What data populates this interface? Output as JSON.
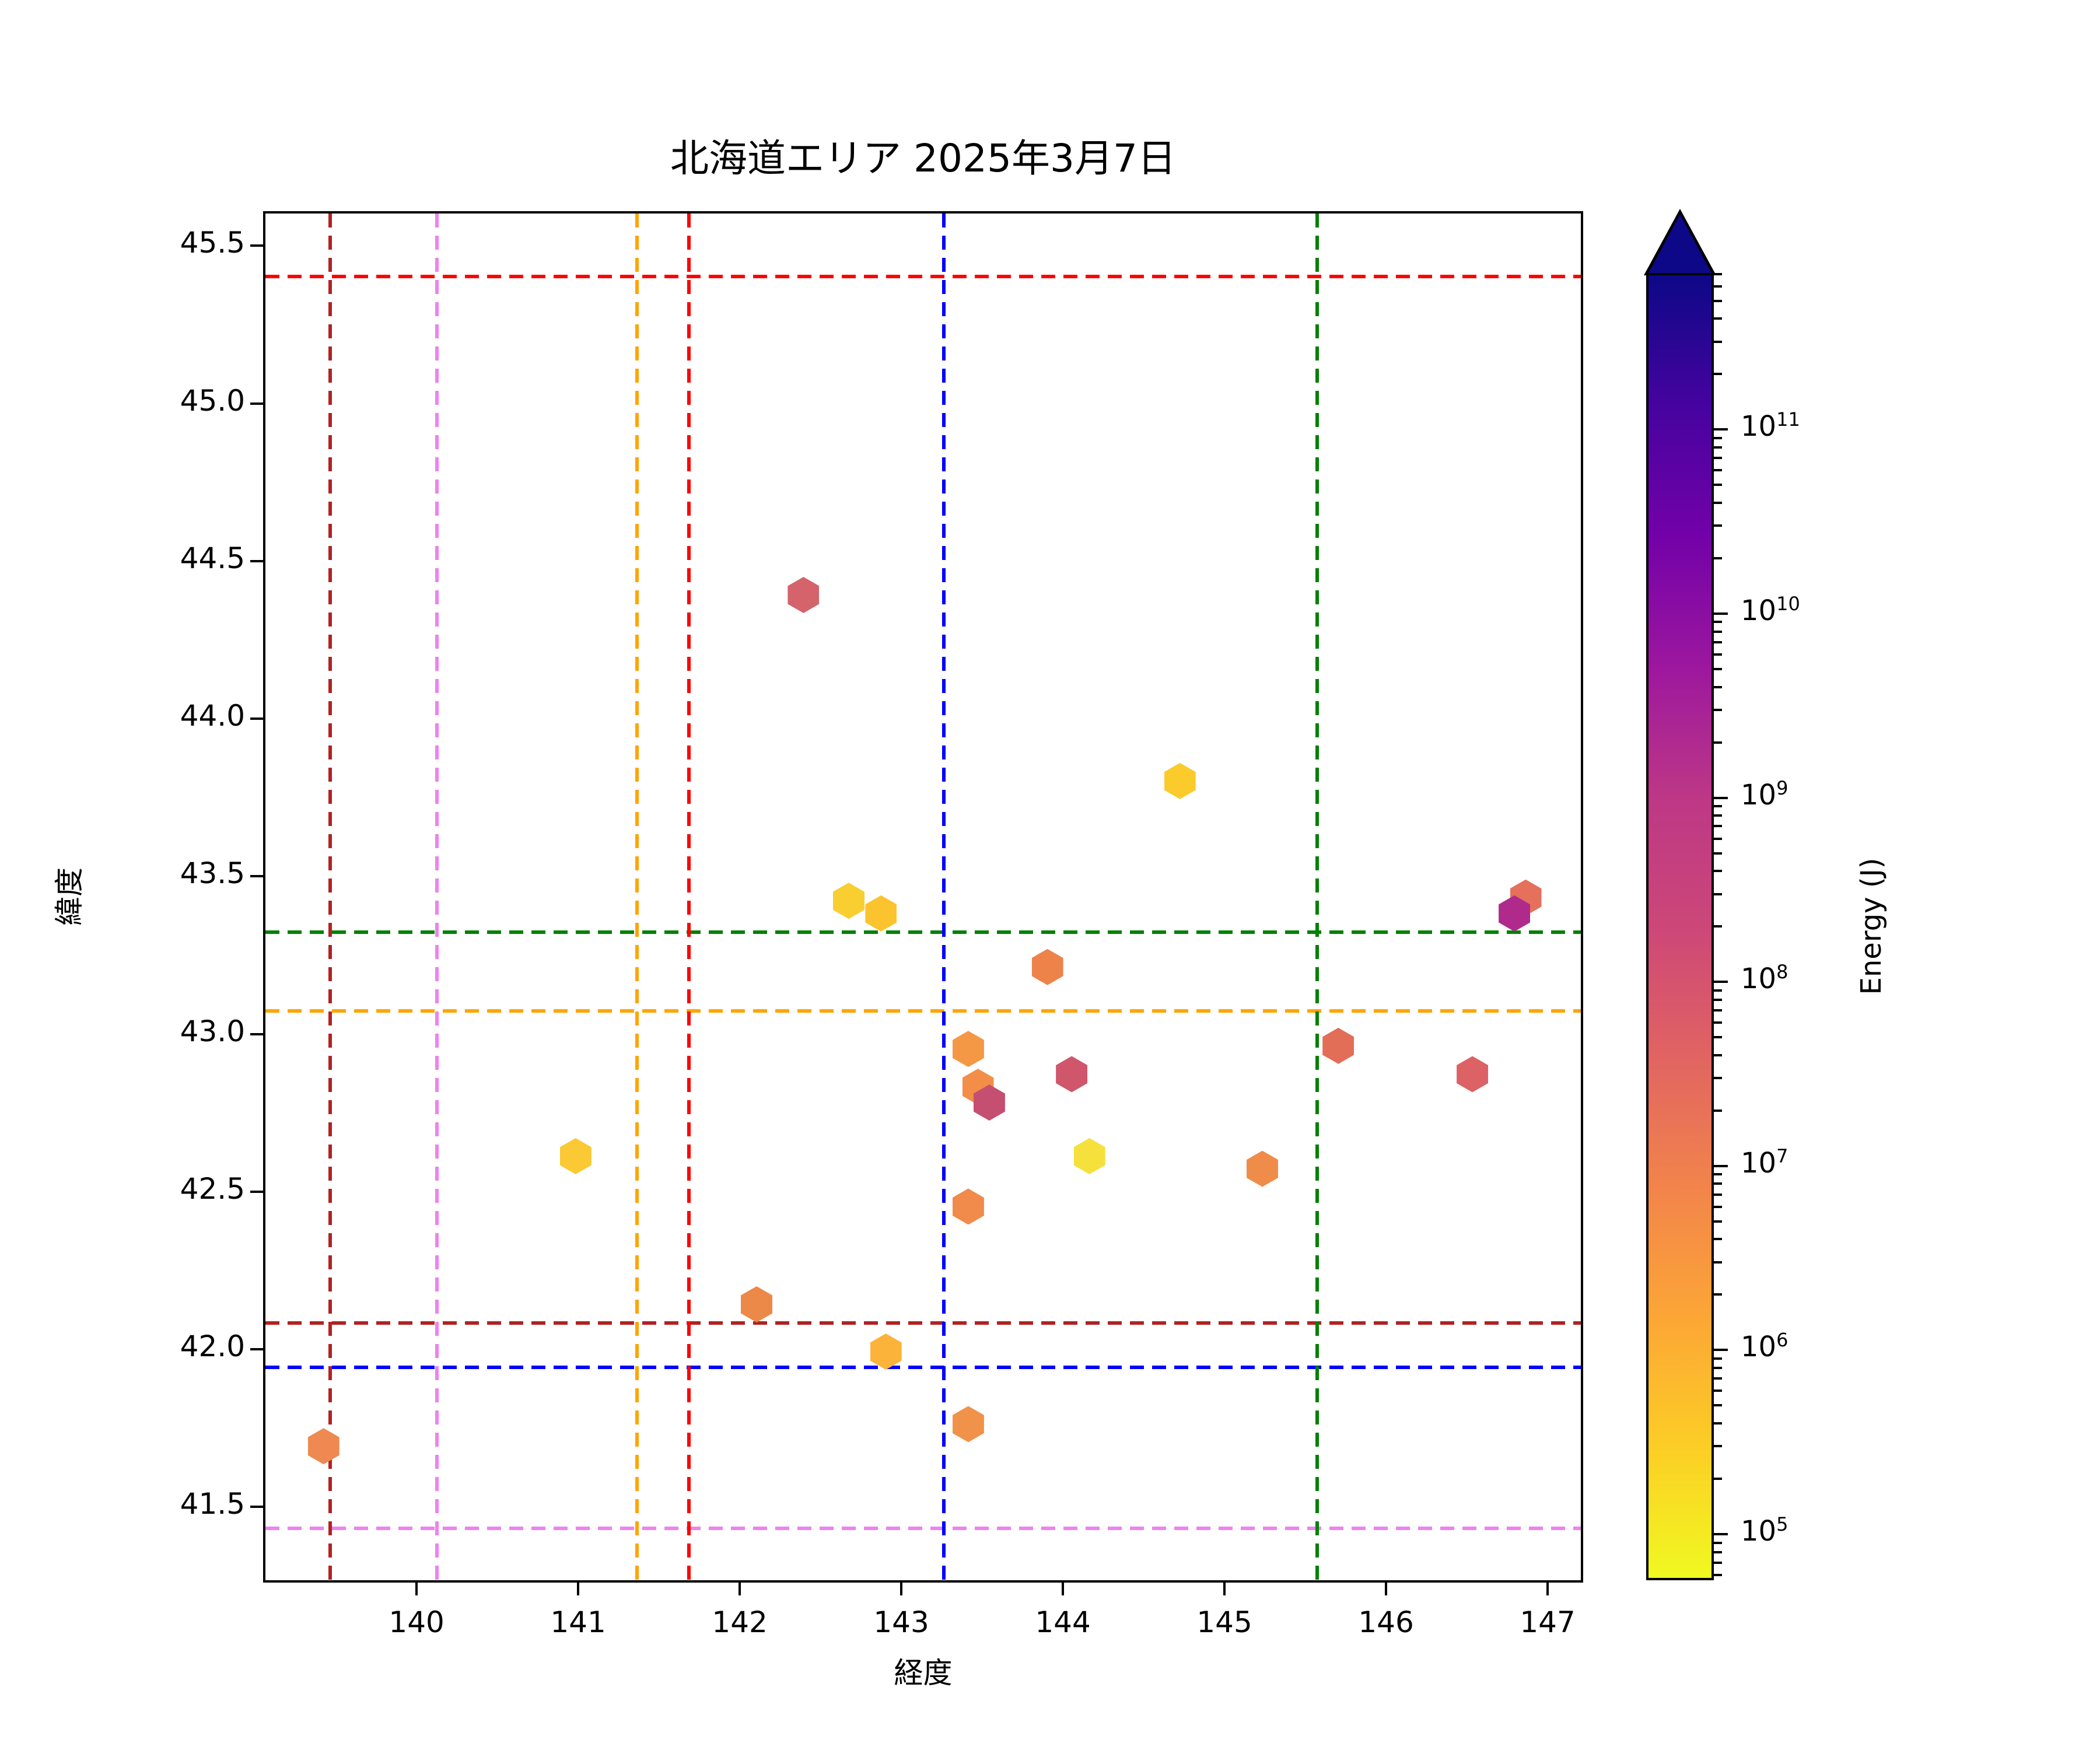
{
  "title": "北海道エリア 2025年3月7日",
  "chart_data": {
    "type": "scatter",
    "title": "北海道エリア 2025年3月7日",
    "xlabel": "経度",
    "ylabel": "緯度",
    "xlim": [
      139.05,
      147.22
    ],
    "ylim": [
      41.26,
      45.61
    ],
    "xticks": [
      140,
      141,
      142,
      143,
      144,
      145,
      146,
      147
    ],
    "yticks": [
      41.5,
      42.0,
      42.5,
      43.0,
      43.5,
      44.0,
      44.5,
      45.0,
      45.5
    ],
    "grid": false,
    "marker": "hexagon",
    "points": [
      {
        "lon": 139.41,
        "lat": 41.7,
        "color": "#ee8a51",
        "energy_j": 6500000
      },
      {
        "lon": 140.97,
        "lat": 42.62,
        "color": "#fbc933",
        "energy_j": 470000
      },
      {
        "lon": 142.09,
        "lat": 42.15,
        "color": "#ec8948",
        "energy_j": 6300000
      },
      {
        "lon": 142.38,
        "lat": 44.4,
        "color": "#d5636c",
        "energy_j": 59000000
      },
      {
        "lon": 142.66,
        "lat": 43.43,
        "color": "#f9ce30",
        "energy_j": 400000
      },
      {
        "lon": 142.86,
        "lat": 43.39,
        "color": "#fbc32e",
        "energy_j": 630000
      },
      {
        "lon": 142.89,
        "lat": 42.0,
        "color": "#fbb33a",
        "energy_j": 1500000
      },
      {
        "lon": 143.4,
        "lat": 42.96,
        "color": "#f49845",
        "energy_j": 4000000
      },
      {
        "lon": 143.46,
        "lat": 42.84,
        "color": "#f28e47",
        "energy_j": 4700000
      },
      {
        "lon": 143.53,
        "lat": 42.79,
        "color": "#c44f70",
        "energy_j": 280000000
      },
      {
        "lon": 143.4,
        "lat": 42.46,
        "color": "#f08b4b",
        "energy_j": 5500000
      },
      {
        "lon": 143.4,
        "lat": 41.77,
        "color": "#f0924a",
        "energy_j": 5500000
      },
      {
        "lon": 143.89,
        "lat": 43.22,
        "color": "#ed8349",
        "energy_j": 7100000
      },
      {
        "lon": 144.04,
        "lat": 42.88,
        "color": "#cf566b",
        "energy_j": 90000000
      },
      {
        "lon": 144.15,
        "lat": 42.62,
        "color": "#f6e03b",
        "energy_j": 150000
      },
      {
        "lon": 144.71,
        "lat": 43.81,
        "color": "#fbca2b",
        "energy_j": 440000
      },
      {
        "lon": 145.22,
        "lat": 42.58,
        "color": "#ef8c4a",
        "energy_j": 5500000
      },
      {
        "lon": 145.69,
        "lat": 42.97,
        "color": "#e26e58",
        "energy_j": 16000000
      },
      {
        "lon": 146.52,
        "lat": 42.88,
        "color": "#dd6265",
        "energy_j": 33000000
      },
      {
        "lon": 146.85,
        "lat": 43.44,
        "color": "#e5705c",
        "energy_j": 20000000
      },
      {
        "lon": 146.78,
        "lat": 43.39,
        "color": "#b02a8c",
        "energy_j": 2500000000
      }
    ],
    "hlines": [
      {
        "y": 45.41,
        "color": "#ff0000",
        "name": "red"
      },
      {
        "y": 43.33,
        "color": "#008000",
        "name": "green"
      },
      {
        "y": 43.08,
        "color": "#ffa500",
        "name": "orange"
      },
      {
        "y": 42.09,
        "color": "#b22222",
        "name": "darkred"
      },
      {
        "y": 41.95,
        "color": "#0000ff",
        "name": "blue"
      },
      {
        "y": 41.44,
        "color": "#ee82ee",
        "name": "violet"
      }
    ],
    "vlines": [
      {
        "x": 139.45,
        "color": "#b22222",
        "name": "darkred"
      },
      {
        "x": 140.11,
        "color": "#ee82ee",
        "name": "violet"
      },
      {
        "x": 141.35,
        "color": "#ffa500",
        "name": "orange"
      },
      {
        "x": 141.67,
        "color": "#ff0000",
        "name": "red"
      },
      {
        "x": 143.25,
        "color": "#0000ff",
        "name": "blue"
      },
      {
        "x": 145.56,
        "color": "#008000",
        "name": "green"
      }
    ],
    "colorbar": {
      "label": "Energy (J)",
      "scale": "log",
      "cmap": "plasma_r",
      "extend": "max",
      "log_vmin": 4.75,
      "log_vmax": 11.85,
      "tick_exponents": [
        5,
        6,
        7,
        8,
        9,
        10,
        11
      ],
      "tick_base": "10"
    }
  }
}
